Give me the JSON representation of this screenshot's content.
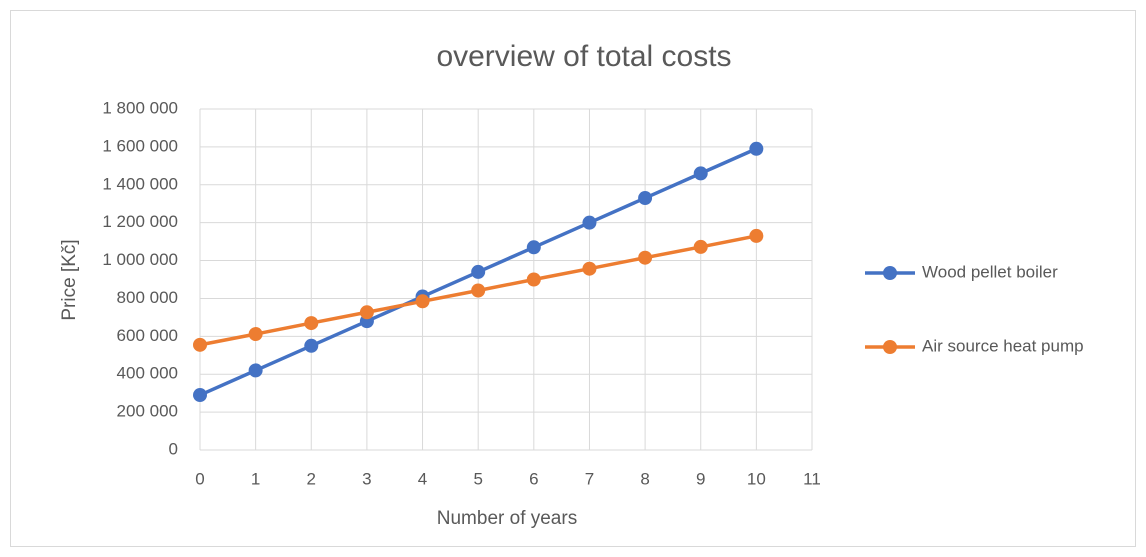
{
  "chart_data": {
    "type": "line",
    "title": "overview of total costs",
    "x_label": "Number of years",
    "y_label": "Price [Kč]",
    "x": [
      0,
      1,
      2,
      3,
      4,
      5,
      6,
      7,
      8,
      9,
      10
    ],
    "series": [
      {
        "name": "Wood pellet boiler",
        "color": "#4472c4",
        "values": [
          290000,
          420000,
          550000,
          680000,
          810000,
          940000,
          1070000,
          1200000,
          1330000,
          1460000,
          1590000
        ]
      },
      {
        "name": "Air source heat pump",
        "color": "#ed7d31",
        "values": [
          555000,
          612000,
          670000,
          727000,
          785000,
          842000,
          900000,
          957000,
          1015000,
          1072000,
          1130000
        ]
      }
    ],
    "xlim": [
      0,
      11
    ],
    "xticks": [
      0,
      1,
      2,
      3,
      4,
      5,
      6,
      7,
      8,
      9,
      10,
      11
    ],
    "ylim": [
      0,
      1800000
    ],
    "yticks": [
      0,
      {
        "value": 200000,
        "label": "200 000"
      },
      {
        "value": 400000,
        "label": "400 000"
      },
      {
        "value": 600000,
        "label": "600 000"
      },
      {
        "value": 800000,
        "label": "800 000"
      },
      {
        "value": 1000000,
        "label": "1 000 000"
      },
      {
        "value": 1200000,
        "label": "1 200 000"
      },
      {
        "value": 1400000,
        "label": "1 400 000"
      },
      {
        "value": 1600000,
        "label": "1 600 000"
      },
      {
        "value": 1800000,
        "label": "1 800 000"
      }
    ],
    "grid": true,
    "legend": "right"
  }
}
